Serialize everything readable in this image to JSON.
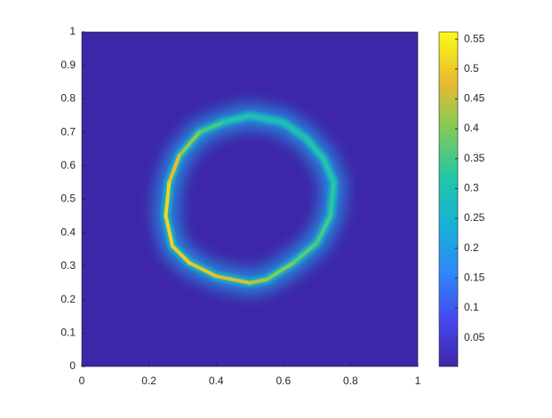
{
  "chart_data": {
    "type": "heatmap-ring",
    "x": [
      0.5,
      0.6,
      0.67,
      0.72,
      0.75,
      0.74,
      0.7,
      0.63,
      0.55,
      0.5,
      0.4,
      0.32,
      0.27,
      0.25,
      0.26,
      0.29,
      0.35,
      0.42
    ],
    "y": [
      0.75,
      0.73,
      0.68,
      0.62,
      0.55,
      0.45,
      0.37,
      0.31,
      0.26,
      0.25,
      0.27,
      0.31,
      0.36,
      0.45,
      0.55,
      0.63,
      0.7,
      0.73
    ],
    "values": [
      0.3,
      0.28,
      0.3,
      0.32,
      0.3,
      0.35,
      0.35,
      0.38,
      0.42,
      0.45,
      0.48,
      0.5,
      0.5,
      0.52,
      0.5,
      0.45,
      0.38,
      0.32
    ],
    "xlim": [
      0,
      1
    ],
    "xticks": [
      0,
      0.2,
      0.4,
      0.6,
      0.8,
      1
    ],
    "ylim": [
      0,
      1
    ],
    "yticks": [
      0,
      0.1,
      0.2,
      0.3,
      0.4,
      0.5,
      0.6,
      0.7,
      0.8,
      0.9,
      1
    ],
    "clim": [
      0.002,
      0.562
    ],
    "cticks": [
      0.05,
      0.1,
      0.15,
      0.2,
      0.25,
      0.3,
      0.35,
      0.4,
      0.45,
      0.5,
      0.55
    ],
    "colormap": "parula"
  }
}
